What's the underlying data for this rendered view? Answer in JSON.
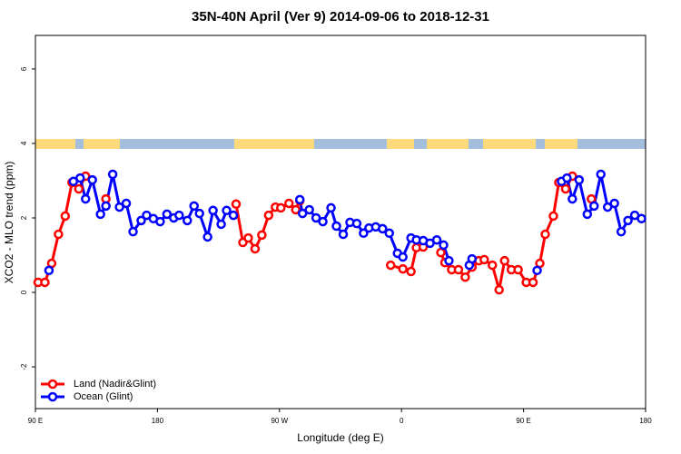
{
  "chart_data": {
    "type": "line",
    "title": "35N-40N April (Ver 9)   2014-09-06 to 2018-12-31",
    "x_label": "Longitude (deg E)",
    "y_label": "XCO2 - MLO trend (ppm)",
    "xlim": [
      90,
      540
    ],
    "xticks": [
      {
        "value": 90,
        "label": "90 E"
      },
      180,
      {
        "value": 270,
        "label": "90 W"
      },
      {
        "value": 360,
        "label": "0"
      },
      {
        "value": 450,
        "label": "90 E"
      },
      {
        "value": 540,
        "label": "180"
      }
    ],
    "ylim": [
      -3.12,
      6.9
    ],
    "yticks": [
      -2,
      0,
      2,
      4,
      6
    ],
    "legend": "bottom-left",
    "series": [
      {
        "name": "Land (Nadir&Glint)",
        "color": "#ff0000",
        "x": [
          92,
          97,
          102,
          107,
          112,
          117,
          122,
          127,
          null,
          142,
          null,
          238,
          243,
          247,
          252,
          257,
          262,
          267,
          271,
          277,
          282,
          285,
          null,
          352,
          361,
          367,
          371,
          376,
          null,
          389,
          392,
          397,
          402,
          407,
          412,
          417,
          421,
          427,
          432,
          436,
          441,
          446,
          452,
          457,
          462,
          466,
          472,
          476,
          481,
          486,
          null,
          500
        ],
        "values": [
          0.27,
          0.27,
          0.78,
          1.56,
          2.05,
          2.95,
          2.78,
          3.12,
          null,
          2.51,
          null,
          2.37,
          1.34,
          1.46,
          1.17,
          1.54,
          2.07,
          2.29,
          2.27,
          2.39,
          2.22,
          2.46,
          null,
          0.73,
          0.63,
          0.56,
          1.2,
          1.22,
          null,
          1.07,
          0.8,
          0.61,
          0.61,
          0.41,
          0.68,
          0.85,
          0.88,
          0.73,
          0.07,
          0.85,
          0.61,
          0.61,
          0.27,
          0.27,
          0.78,
          1.56,
          2.05,
          2.95,
          2.78,
          3.12,
          null,
          2.51
        ]
      },
      {
        "name": "Ocean (Glint)",
        "color": "#0000ff",
        "x": [
          100,
          null,
          118,
          123,
          127,
          132,
          138,
          142,
          147,
          152,
          157,
          162,
          168,
          172,
          177,
          182,
          187,
          192,
          196,
          202,
          207,
          211,
          217,
          221,
          227,
          231,
          236,
          null,
          285,
          287,
          292,
          297,
          302,
          308,
          312,
          317,
          322,
          327,
          332,
          336,
          341,
          346,
          351,
          357,
          361,
          367,
          371,
          376,
          381,
          386,
          391,
          395,
          null,
          410,
          412,
          null,
          460,
          null,
          478,
          482,
          486,
          491,
          497,
          502,
          507,
          512,
          517,
          522,
          527,
          532,
          537
        ],
        "values": [
          0.59,
          null,
          2.98,
          3.07,
          2.51,
          3.02,
          2.1,
          2.32,
          3.17,
          2.29,
          2.39,
          1.63,
          1.93,
          2.07,
          1.98,
          1.9,
          2.1,
          2.0,
          2.07,
          1.93,
          2.32,
          2.12,
          1.49,
          2.2,
          1.83,
          2.2,
          2.07,
          null,
          2.49,
          2.12,
          2.22,
          2.0,
          1.9,
          2.27,
          1.78,
          1.56,
          1.88,
          1.85,
          1.59,
          1.73,
          1.76,
          1.71,
          1.59,
          1.05,
          0.95,
          1.46,
          1.41,
          1.39,
          1.32,
          1.41,
          1.27,
          0.85,
          null,
          0.73,
          0.9,
          null,
          0.59,
          null,
          2.98,
          3.07,
          2.51,
          3.02,
          2.1,
          2.32,
          3.17,
          2.29,
          2.39,
          1.63,
          1.93,
          2.07,
          1.98
        ]
      }
    ]
  }
}
